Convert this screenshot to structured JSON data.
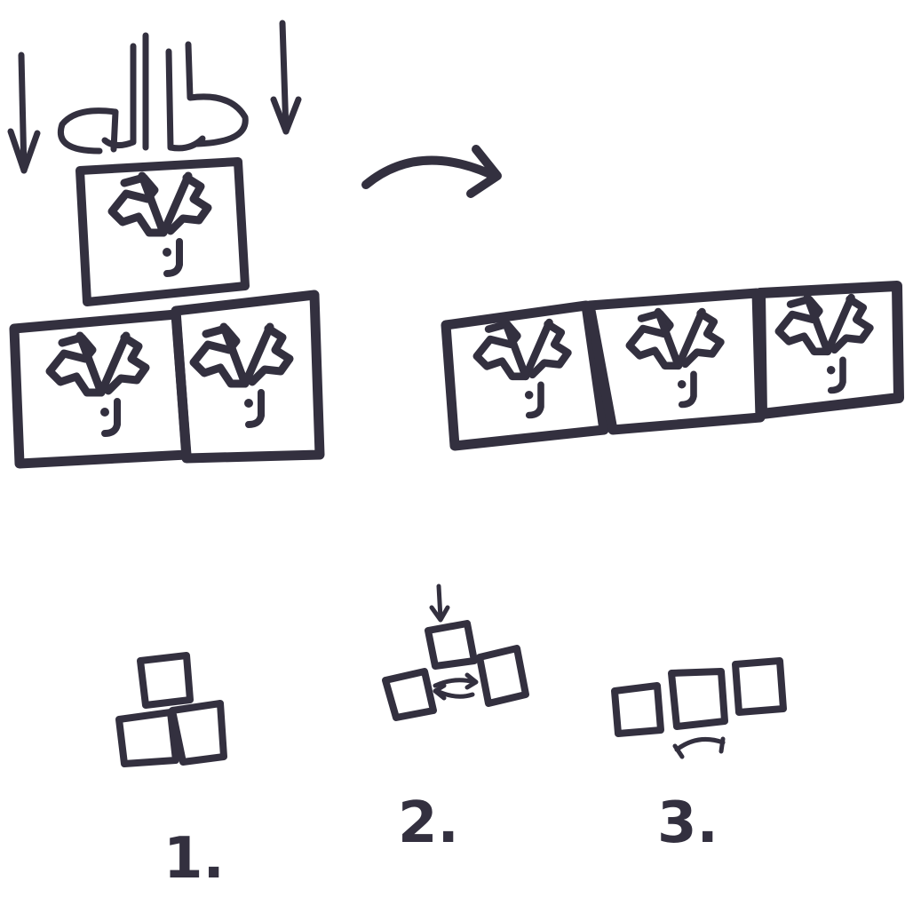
{
  "ink_color": "#33303f",
  "background": "#ffffff",
  "main": {
    "before": {
      "icons": [
        "finder-tile-icon",
        "finder-tile-icon",
        "finder-tile-icon"
      ]
    },
    "after": {
      "icons": [
        "finder-tile-icon",
        "finder-tile-icon",
        "finder-tile-icon"
      ]
    }
  },
  "steps": [
    {
      "label": "1."
    },
    {
      "label": "2."
    },
    {
      "label": "3."
    }
  ]
}
